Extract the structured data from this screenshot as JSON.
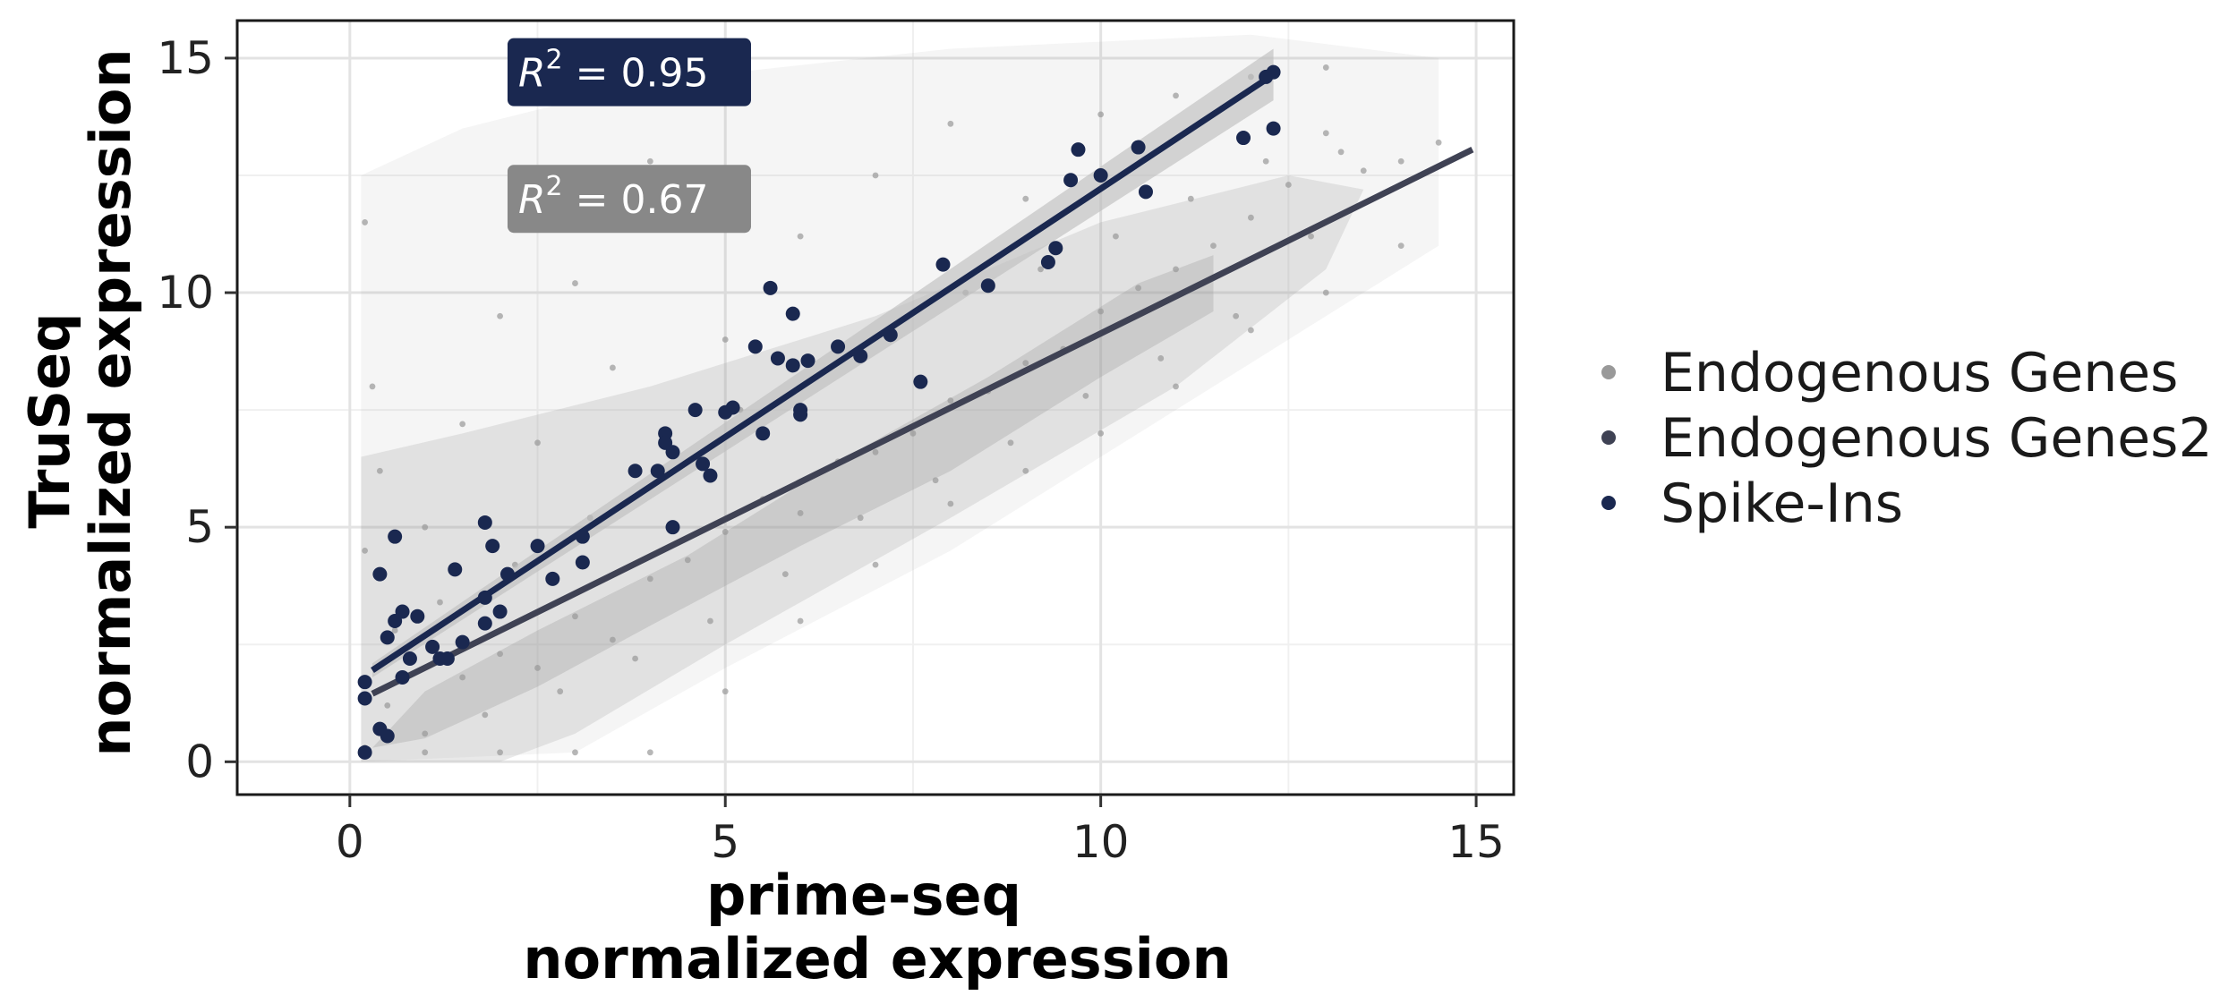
{
  "chart_data": {
    "type": "scatter",
    "xlabel_lines": [
      "prime-seq",
      "normalized expression"
    ],
    "ylabel_lines": [
      "TruSeq",
      "normalized expression"
    ],
    "xlim": [
      -1.5,
      15.5
    ],
    "ylim": [
      -0.7,
      15.8
    ],
    "xticks": [
      0,
      5,
      10,
      15
    ],
    "yticks": [
      0,
      5,
      10,
      15
    ],
    "grid": true,
    "legend_position": "right",
    "legend": [
      {
        "label": "Endogenous Genes",
        "color": "#999999"
      },
      {
        "label": "Endogenous Genes2",
        "color": "#3f4254"
      },
      {
        "label": "Spike-Ins",
        "color": "#1a2850"
      }
    ],
    "annotations": [
      {
        "text": "R² = 0.95",
        "base": "R",
        "sup": "2",
        "rest": " = 0.95",
        "x": 2.1,
        "y": 14.7,
        "color": "#1a2850"
      },
      {
        "text": "R² = 0.67",
        "base": "R",
        "sup": "2",
        "rest": " = 0.67",
        "x": 2.1,
        "y": 12.0,
        "color": "#888888"
      }
    ],
    "series": [
      {
        "name": "Endogenous Genes",
        "color": "#999999",
        "kind": "points",
        "points": [
          [
            0.2,
            0.3
          ],
          [
            0.5,
            1.2
          ],
          [
            1.0,
            0.6
          ],
          [
            1.5,
            1.8
          ],
          [
            2.0,
            2.3
          ],
          [
            2.5,
            2.0
          ],
          [
            3.0,
            3.1
          ],
          [
            3.5,
            2.6
          ],
          [
            4.0,
            3.9
          ],
          [
            4.5,
            4.3
          ],
          [
            5.0,
            4.9
          ],
          [
            5.5,
            5.6
          ],
          [
            6.0,
            5.3
          ],
          [
            6.5,
            6.4
          ],
          [
            7.0,
            6.6
          ],
          [
            7.5,
            7.0
          ],
          [
            8.0,
            7.7
          ],
          [
            8.5,
            7.9
          ],
          [
            9.0,
            8.5
          ],
          [
            9.5,
            8.8
          ],
          [
            10.0,
            9.6
          ],
          [
            10.5,
            10.1
          ],
          [
            11.0,
            10.5
          ],
          [
            11.5,
            11.0
          ],
          [
            12.0,
            11.6
          ],
          [
            12.5,
            12.3
          ],
          [
            13.0,
            13.4
          ],
          [
            13.5,
            12.6
          ],
          [
            0.2,
            4.5
          ],
          [
            0.3,
            8.0
          ],
          [
            0.2,
            11.5
          ],
          [
            0.4,
            6.2
          ],
          [
            1.0,
            5.0
          ],
          [
            1.5,
            7.2
          ],
          [
            2.0,
            9.5
          ],
          [
            2.5,
            6.8
          ],
          [
            3.0,
            10.2
          ],
          [
            3.5,
            8.4
          ],
          [
            4.0,
            12.8
          ],
          [
            5.0,
            9.0
          ],
          [
            6.0,
            11.2
          ],
          [
            7.0,
            12.5
          ],
          [
            8.0,
            13.6
          ],
          [
            9.0,
            12.0
          ],
          [
            10.0,
            13.8
          ],
          [
            11.0,
            14.2
          ],
          [
            12.0,
            14.6
          ],
          [
            13.0,
            14.8
          ],
          [
            14.0,
            12.8
          ],
          [
            14.5,
            13.2
          ],
          [
            3.0,
            0.2
          ],
          [
            5.0,
            1.5
          ],
          [
            6.0,
            3.0
          ],
          [
            7.0,
            4.2
          ],
          [
            8.0,
            5.5
          ],
          [
            9.0,
            6.2
          ],
          [
            10.0,
            7.0
          ],
          [
            11.0,
            8.0
          ],
          [
            12.0,
            9.2
          ],
          [
            13.0,
            10.0
          ],
          [
            14.0,
            11.0
          ],
          [
            4.0,
            0.2
          ],
          [
            2.0,
            0.2
          ],
          [
            1.0,
            0.2
          ],
          [
            0.6,
            2.8
          ],
          [
            1.2,
            3.4
          ],
          [
            1.8,
            1.0
          ],
          [
            2.2,
            4.2
          ],
          [
            2.8,
            1.5
          ],
          [
            3.2,
            5.2
          ],
          [
            3.8,
            2.2
          ],
          [
            4.2,
            6.8
          ],
          [
            4.8,
            3.0
          ],
          [
            5.2,
            7.5
          ],
          [
            5.8,
            4.0
          ],
          [
            6.2,
            8.2
          ],
          [
            6.8,
            5.2
          ],
          [
            7.2,
            9.0
          ],
          [
            7.8,
            6.0
          ],
          [
            8.2,
            10.0
          ],
          [
            8.8,
            6.8
          ],
          [
            9.2,
            10.5
          ],
          [
            9.8,
            7.8
          ],
          [
            10.2,
            11.2
          ],
          [
            10.8,
            8.6
          ],
          [
            11.2,
            12.0
          ],
          [
            11.8,
            9.5
          ],
          [
            12.2,
            12.8
          ],
          [
            12.8,
            11.2
          ],
          [
            13.2,
            13.0
          ]
        ]
      },
      {
        "name": "Endogenous Genes2",
        "color": "#3f4254",
        "kind": "line",
        "line": [
          [
            0.3,
            1.45
          ],
          [
            14.95,
            13.05
          ]
        ]
      },
      {
        "name": "Spike-Ins",
        "color": "#1a2850",
        "kind": "points",
        "line": [
          [
            0.3,
            1.95
          ],
          [
            12.3,
            14.65
          ]
        ],
        "points": [
          [
            0.2,
            0.2
          ],
          [
            0.2,
            1.35
          ],
          [
            0.2,
            1.7
          ],
          [
            0.4,
            0.7
          ],
          [
            0.4,
            4.0
          ],
          [
            0.5,
            0.55
          ],
          [
            0.5,
            2.65
          ],
          [
            0.6,
            3.0
          ],
          [
            0.6,
            4.8
          ],
          [
            0.7,
            3.2
          ],
          [
            0.7,
            1.8
          ],
          [
            0.8,
            2.2
          ],
          [
            0.9,
            3.1
          ],
          [
            1.1,
            2.45
          ],
          [
            1.2,
            2.2
          ],
          [
            1.3,
            2.2
          ],
          [
            1.4,
            4.1
          ],
          [
            1.5,
            2.55
          ],
          [
            1.8,
            5.1
          ],
          [
            1.8,
            3.5
          ],
          [
            1.8,
            2.95
          ],
          [
            1.9,
            4.6
          ],
          [
            2.0,
            3.2
          ],
          [
            2.1,
            4.0
          ],
          [
            2.5,
            4.6
          ],
          [
            2.7,
            3.9
          ],
          [
            3.1,
            4.8
          ],
          [
            3.1,
            4.25
          ],
          [
            3.8,
            6.2
          ],
          [
            4.1,
            6.2
          ],
          [
            4.2,
            7.0
          ],
          [
            4.2,
            6.8
          ],
          [
            4.3,
            6.6
          ],
          [
            4.3,
            5.0
          ],
          [
            4.6,
            7.5
          ],
          [
            4.7,
            6.35
          ],
          [
            4.8,
            6.1
          ],
          [
            5.0,
            7.45
          ],
          [
            5.1,
            7.55
          ],
          [
            5.4,
            8.85
          ],
          [
            5.5,
            7.0
          ],
          [
            5.6,
            10.1
          ],
          [
            5.7,
            8.6
          ],
          [
            5.9,
            8.45
          ],
          [
            5.9,
            9.55
          ],
          [
            6.0,
            7.5
          ],
          [
            6.0,
            7.4
          ],
          [
            6.1,
            8.55
          ],
          [
            6.5,
            8.85
          ],
          [
            6.8,
            8.65
          ],
          [
            7.2,
            9.1
          ],
          [
            7.6,
            8.1
          ],
          [
            7.9,
            10.6
          ],
          [
            8.5,
            10.15
          ],
          [
            9.3,
            10.65
          ],
          [
            9.4,
            10.95
          ],
          [
            9.6,
            12.4
          ],
          [
            9.7,
            13.05
          ],
          [
            10.0,
            12.5
          ],
          [
            10.5,
            13.1
          ],
          [
            10.6,
            12.15
          ],
          [
            11.9,
            13.3
          ],
          [
            12.2,
            14.6
          ],
          [
            12.3,
            13.5
          ],
          [
            12.3,
            14.7
          ]
        ]
      }
    ]
  }
}
